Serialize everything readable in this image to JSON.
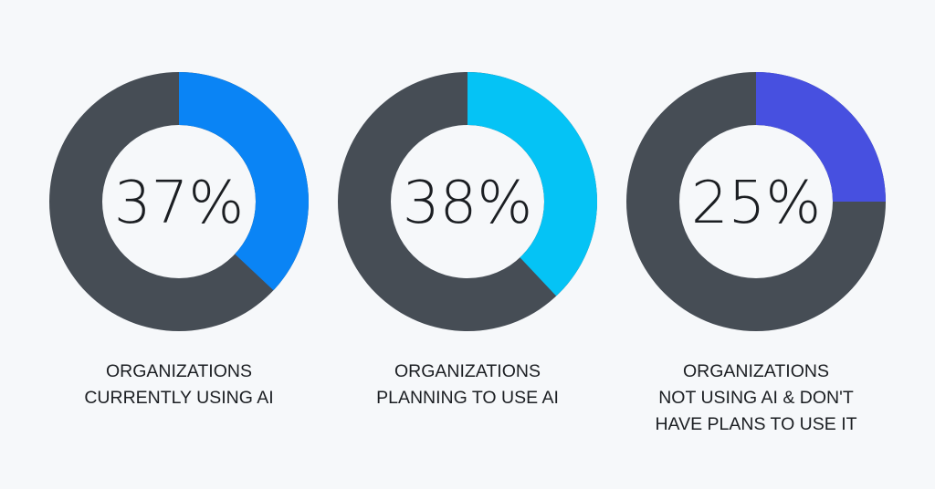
{
  "chart_data": {
    "type": "pie",
    "charts": [
      {
        "value": 37,
        "percent_label": "37%",
        "label_lines": [
          "ORGANIZATIONS",
          "CURRENTLY USING AI"
        ],
        "color": "#0a84f5"
      },
      {
        "value": 38,
        "percent_label": "38%",
        "label_lines": [
          "ORGANIZATIONS",
          "PLANNING TO USE AI"
        ],
        "color": "#05c3f5"
      },
      {
        "value": 25,
        "percent_label": "25%",
        "label_lines": [
          "ORGANIZATIONS",
          "NOT USING AI & DON'T",
          "HAVE PLANS TO USE IT"
        ],
        "color": "#4750e0"
      }
    ],
    "track_color": "#464d55",
    "background_color": "#f6f8fa"
  }
}
